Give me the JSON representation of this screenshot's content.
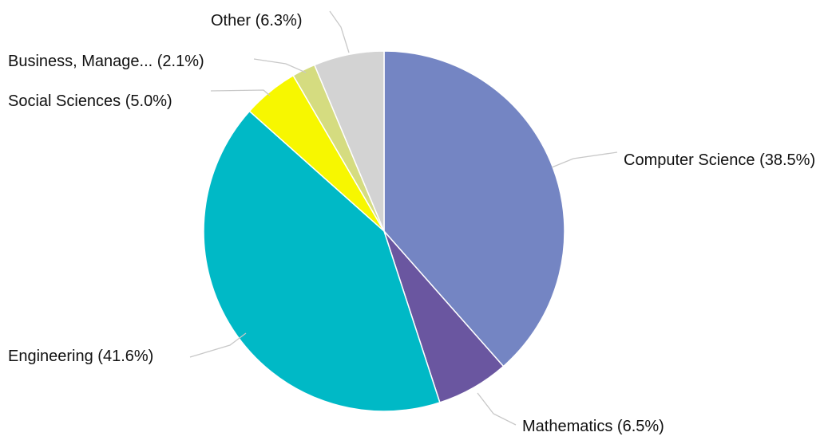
{
  "chart_data": {
    "type": "pie",
    "title": "",
    "start": "12 o'clock",
    "direction": "clockwise",
    "slices": [
      {
        "label": "Computer Science (38.5%)",
        "category": "Computer Science",
        "value": 38.5,
        "color": "#7485c3"
      },
      {
        "label": "Mathematics (6.5%)",
        "category": "Mathematics",
        "value": 6.5,
        "color": "#6a56a0"
      },
      {
        "label": "Engineering (41.6%)",
        "category": "Engineering",
        "value": 41.6,
        "color": "#00b9c6"
      },
      {
        "label": "Social Sciences (5.0%)",
        "category": "Social Sciences",
        "value": 5.0,
        "color": "#f7f700"
      },
      {
        "label": "Business, Manage... (2.1%)",
        "category": "Business, Manage...",
        "value": 2.1,
        "color": "#d5dc80"
      },
      {
        "label": "Other (6.3%)",
        "category": "Other",
        "value": 6.3,
        "color": "#d3d3d3"
      }
    ]
  }
}
